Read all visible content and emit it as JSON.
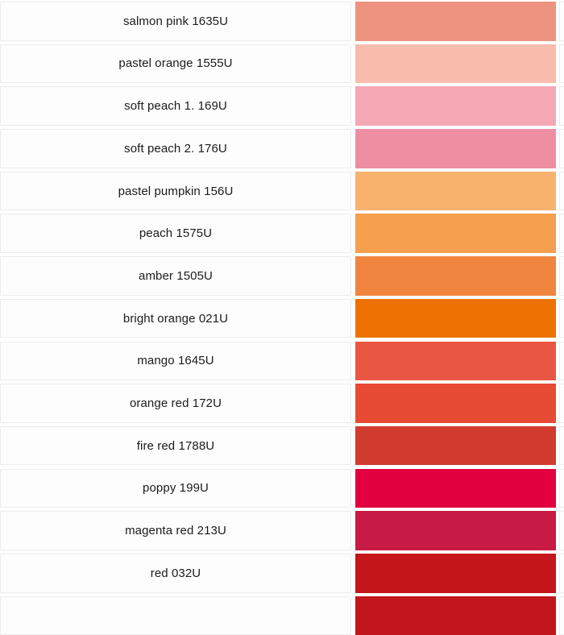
{
  "chart_data": {
    "type": "table",
    "columns": [
      "color_name",
      "swatch"
    ],
    "rows": [
      {
        "label": "salmon pink 1635U",
        "color": "#ED9380"
      },
      {
        "label": "pastel orange 1555U",
        "color": "#F9BCAC"
      },
      {
        "label": "soft peach 1. 169U",
        "color": "#F3A8B4"
      },
      {
        "label": "soft peach 2. 176U",
        "color": "#EE8EA3"
      },
      {
        "label": "pastel pumpkin 156U",
        "color": "#F8B26D"
      },
      {
        "label": "peach 1575U",
        "color": "#F5A04F"
      },
      {
        "label": "amber 1505U",
        "color": "#F08540"
      },
      {
        "label": "bright orange 021U",
        "color": "#ED7203"
      },
      {
        "label": "mango 1645U",
        "color": "#E95742"
      },
      {
        "label": "orange red 172U",
        "color": "#E74B33"
      },
      {
        "label": "fire red 1788U",
        "color": "#D13B2E"
      },
      {
        "label": "poppy 199U",
        "color": "#E30040"
      },
      {
        "label": "magenta red 213U",
        "color": "#C71A44"
      },
      {
        "label": "red 032U",
        "color": "#C4161B"
      },
      {
        "label": "",
        "color": "#C2161D",
        "partial": true
      }
    ]
  }
}
